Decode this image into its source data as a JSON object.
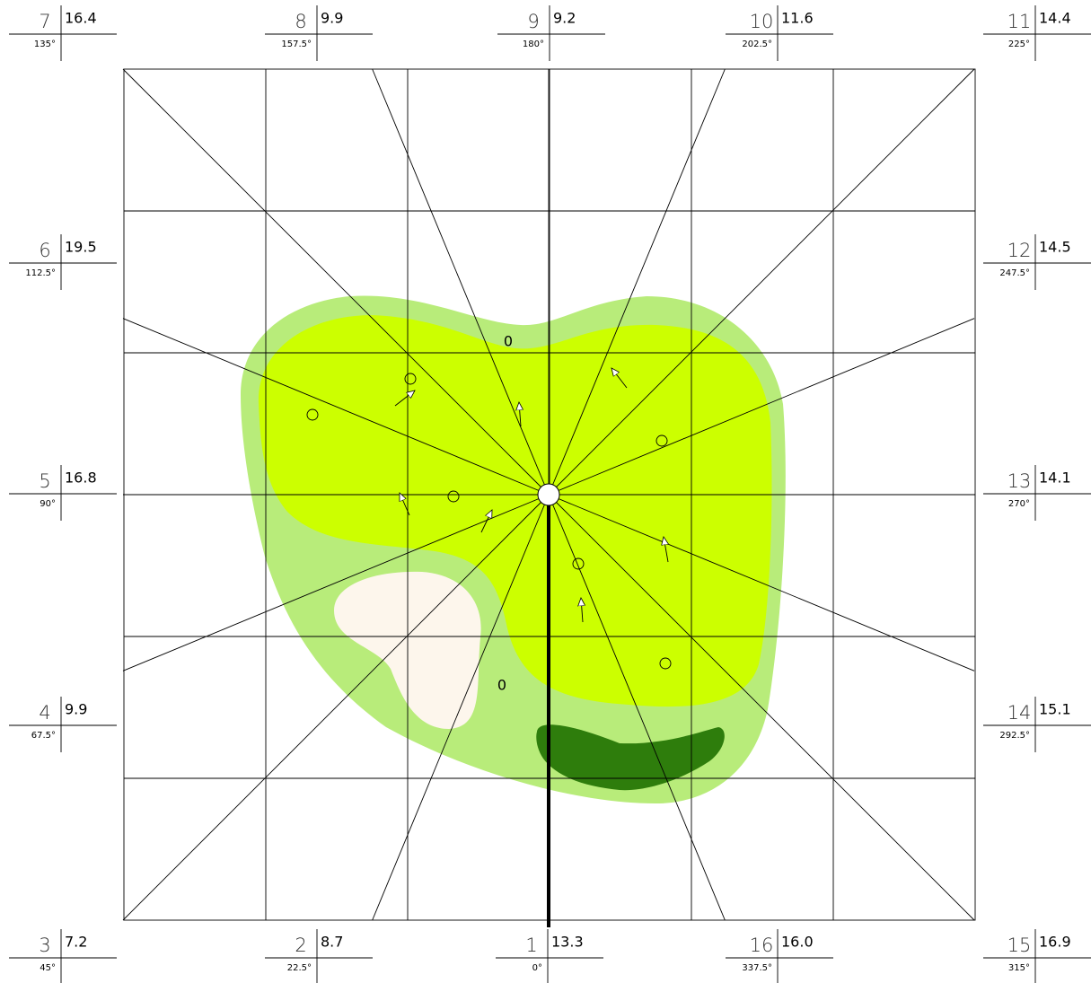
{
  "directions": [
    {
      "number": "1",
      "value": "13.3",
      "angle": "0°"
    },
    {
      "number": "2",
      "value": "8.7",
      "angle": "22.5°"
    },
    {
      "number": "3",
      "value": "7.2",
      "angle": "45°"
    },
    {
      "number": "4",
      "value": "9.9",
      "angle": "67.5°"
    },
    {
      "number": "5",
      "value": "16.8",
      "angle": "90°"
    },
    {
      "number": "6",
      "value": "19.5",
      "angle": "112.5°"
    },
    {
      "number": "7",
      "value": "16.4",
      "angle": "135°"
    },
    {
      "number": "8",
      "value": "9.9",
      "angle": "157.5°"
    },
    {
      "number": "9",
      "value": "9.2",
      "angle": "180°"
    },
    {
      "number": "10",
      "value": "11.6",
      "angle": "202.5°"
    },
    {
      "number": "11",
      "value": "14.4",
      "angle": "225°"
    },
    {
      "number": "12",
      "value": "14.5",
      "angle": "247.5°"
    },
    {
      "number": "13",
      "value": "14.1",
      "angle": "270°"
    },
    {
      "number": "14",
      "value": "15.1",
      "angle": "292.5°"
    },
    {
      "number": "15",
      "value": "16.9",
      "angle": "315°"
    },
    {
      "number": "16",
      "value": "16.0",
      "angle": "337.5°"
    }
  ],
  "zero_labels": [
    "0",
    "0"
  ]
}
